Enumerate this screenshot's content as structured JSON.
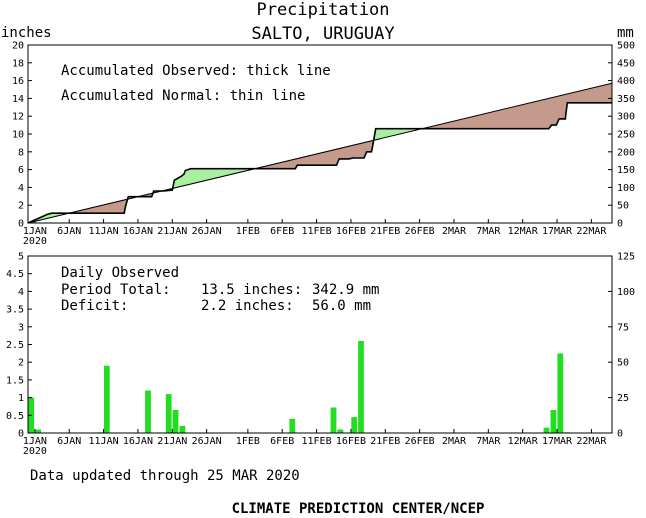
{
  "header": {
    "title": "Precipitation",
    "subtitle": "SALTO, URUGUAY"
  },
  "footer": {
    "updated": "Data updated through 25 MAR 2020",
    "credit": "CLIMATE PREDICTION CENTER/NCEP"
  },
  "colors": {
    "surplus": "#a8f0a0",
    "deficit": "#c49a8c",
    "bars": "#22dd22",
    "axis": "#000000"
  },
  "chart_data": [
    {
      "type": "area",
      "ylabel_left": "inches",
      "ylabel_right": "mm",
      "ylim": [
        0,
        20
      ],
      "y2lim": [
        0,
        500
      ],
      "yticks": [
        "0",
        "2",
        "4",
        "6",
        "8",
        "10",
        "12",
        "14",
        "16",
        "18",
        "20"
      ],
      "y2ticks": [
        "0",
        "50",
        "100",
        "150",
        "200",
        "250",
        "300",
        "350",
        "400",
        "450",
        "500"
      ],
      "xlim": [
        0,
        85
      ],
      "xticks": [
        {
          "day": 1,
          "label": "1JAN",
          "sub": "2020"
        },
        {
          "day": 6,
          "label": "6JAN"
        },
        {
          "day": 11,
          "label": "11JAN"
        },
        {
          "day": 16,
          "label": "16JAN"
        },
        {
          "day": 21,
          "label": "21JAN"
        },
        {
          "day": 26,
          "label": "26JAN"
        },
        {
          "day": 32,
          "label": "1FEB"
        },
        {
          "day": 37,
          "label": "6FEB"
        },
        {
          "day": 42,
          "label": "11FEB"
        },
        {
          "day": 47,
          "label": "16FEB"
        },
        {
          "day": 52,
          "label": "21FEB"
        },
        {
          "day": 57,
          "label": "26FEB"
        },
        {
          "day": 62,
          "label": "2MAR"
        },
        {
          "day": 67,
          "label": "7MAR"
        },
        {
          "day": 72,
          "label": "12MAR"
        },
        {
          "day": 77,
          "label": "17MAR"
        },
        {
          "day": 82,
          "label": "22MAR"
        }
      ],
      "legend": [
        "Accumulated Observed: thick line",
        "Accumulated Normal: thin line"
      ],
      "normal": {
        "x": [
          0,
          85
        ],
        "y": [
          0,
          15.7
        ]
      },
      "observed": {
        "x": [
          0,
          2.9,
          3.2,
          3.4,
          14.0,
          14.2,
          14.6,
          18.0,
          18.3,
          19.7,
          21.0,
          21.3,
          22.3,
          22.7,
          22.9,
          23.7,
          38.9,
          39.2,
          44.9,
          45.3,
          46.7,
          47.3,
          48.9,
          49.3,
          50.0,
          50.2,
          50.6,
          75.8,
          76.2,
          76.9,
          77.3,
          78.2,
          78.5,
          85
        ],
        "y": [
          0,
          1.0,
          1.05,
          1.1,
          1.1,
          1.9,
          2.95,
          2.95,
          3.6,
          3.6,
          3.7,
          4.8,
          5.25,
          5.5,
          5.9,
          6.1,
          6.1,
          6.5,
          6.5,
          7.2,
          7.2,
          7.3,
          7.3,
          8.0,
          8.0,
          8.8,
          10.6,
          10.6,
          11.0,
          11.0,
          11.7,
          11.7,
          13.5,
          13.5
        ]
      }
    },
    {
      "type": "bar",
      "ylim": [
        0,
        5
      ],
      "y2lim": [
        0,
        125
      ],
      "yticks": [
        "0",
        "0.5",
        "1",
        "1.5",
        "2",
        "2.5",
        "3",
        "3.5",
        "4",
        "4.5",
        "5"
      ],
      "y2ticks": [
        "0",
        "25",
        "50",
        "75",
        "100",
        "125"
      ],
      "legend_title": "Daily Observed",
      "stats": {
        "total_label": "Period Total:",
        "total_in": "13.5 inches:",
        "total_mm": "342.9 mm",
        "deficit_label": "Deficit:",
        "deficit_in": "2.2 inches:",
        "deficit_mm": "56.0 mm"
      },
      "x": [
        1,
        2,
        11,
        12,
        18,
        21,
        22,
        23,
        39,
        45,
        46,
        48,
        49,
        76,
        77,
        78,
        79
      ],
      "values": [
        1.0,
        0.1,
        0.02,
        1.9,
        1.2,
        1.1,
        0.65,
        0.2,
        0.4,
        0.72,
        0.1,
        0.45,
        2.6,
        0.15,
        0.65,
        2.25,
        0.02
      ]
    }
  ]
}
